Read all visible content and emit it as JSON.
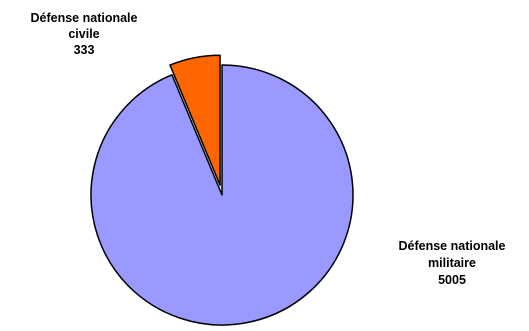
{
  "chart_data": {
    "type": "pie",
    "title": "",
    "categories": [
      "Défense nationale civile",
      "Défense nationale militaire"
    ],
    "values": [
      333,
      5005
    ],
    "colors": [
      "#ff6600",
      "#9999ff"
    ],
    "exploded": [
      "Défense nationale civile"
    ],
    "data_labels": [
      {
        "lines": [
          "Défense nationale",
          "civile"
        ],
        "value": "333"
      },
      {
        "lines": [
          "Défense nationale",
          "militaire"
        ],
        "value": "5005"
      }
    ],
    "legend": "none",
    "outline_color": "#000000"
  }
}
